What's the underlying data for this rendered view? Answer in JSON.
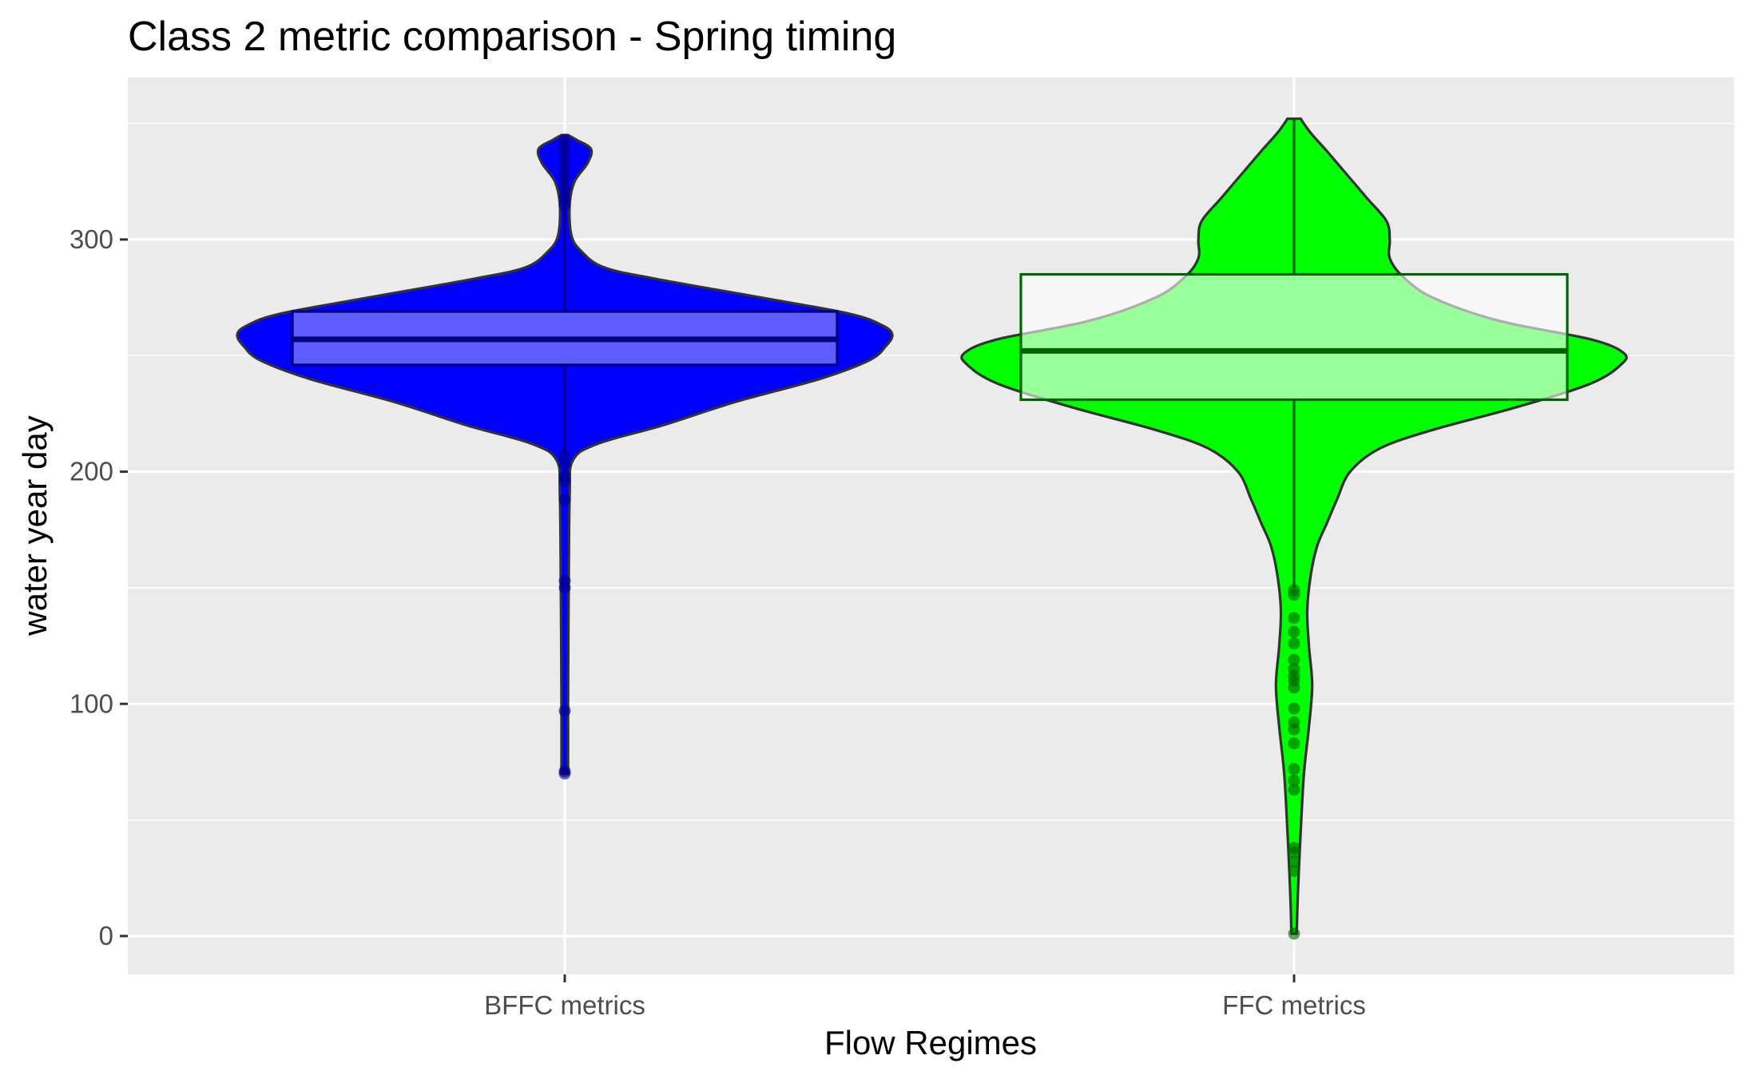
{
  "chart_data": {
    "type": "violin",
    "title": "Class 2 metric comparison - Spring timing",
    "xlabel": "Flow Regimes",
    "ylabel": "water year day",
    "ylim": [
      -16,
      366
    ],
    "y_ticks": [
      0,
      100,
      200,
      300
    ],
    "categories": [
      "BFFC metrics",
      "FFC metrics"
    ],
    "grid": true,
    "legend": "none",
    "series": [
      {
        "category": "BFFC metrics",
        "fill_color": "#0000ff",
        "box_fill": "#9999ff",
        "box_line": "#000080",
        "point_color": "#00008b",
        "box": {
          "q1": 246,
          "median": 257,
          "q3": 269,
          "whisker_low": 208,
          "whisker_high": 340
        },
        "density": [
          {
            "y": 70,
            "w": 0.01
          },
          {
            "y": 100,
            "w": 0.01
          },
          {
            "y": 150,
            "w": 0.012
          },
          {
            "y": 190,
            "w": 0.015
          },
          {
            "y": 205,
            "w": 0.025
          },
          {
            "y": 212,
            "w": 0.1
          },
          {
            "y": 220,
            "w": 0.3
          },
          {
            "y": 230,
            "w": 0.52
          },
          {
            "y": 240,
            "w": 0.78
          },
          {
            "y": 248,
            "w": 0.93
          },
          {
            "y": 254,
            "w": 0.98
          },
          {
            "y": 259,
            "w": 1.0
          },
          {
            "y": 263,
            "w": 0.97
          },
          {
            "y": 268,
            "w": 0.87
          },
          {
            "y": 275,
            "w": 0.6
          },
          {
            "y": 283,
            "w": 0.28
          },
          {
            "y": 288,
            "w": 0.12
          },
          {
            "y": 295,
            "w": 0.05
          },
          {
            "y": 302,
            "w": 0.02
          },
          {
            "y": 315,
            "w": 0.015
          },
          {
            "y": 325,
            "w": 0.03
          },
          {
            "y": 333,
            "w": 0.07
          },
          {
            "y": 339,
            "w": 0.08
          },
          {
            "y": 343,
            "w": 0.035
          },
          {
            "y": 345,
            "w": 0.01
          }
        ],
        "outliers": [
          70,
          71,
          97,
          150,
          153,
          188,
          196,
          198,
          203,
          207,
          315,
          318,
          322,
          326,
          330,
          334,
          338,
          341,
          343
        ]
      },
      {
        "category": "FFC metrics",
        "fill_color": "#00ff00",
        "box_fill": "#ffffff",
        "box_line": "#006400",
        "point_color": "#006400",
        "box": {
          "q1": 231,
          "median": 252,
          "q3": 285,
          "whisker_low": 150,
          "whisker_high": 352
        },
        "density": [
          {
            "y": 1,
            "w": 0.008
          },
          {
            "y": 20,
            "w": 0.012
          },
          {
            "y": 45,
            "w": 0.02
          },
          {
            "y": 70,
            "w": 0.03
          },
          {
            "y": 90,
            "w": 0.045
          },
          {
            "y": 108,
            "w": 0.055
          },
          {
            "y": 125,
            "w": 0.045
          },
          {
            "y": 140,
            "w": 0.04
          },
          {
            "y": 155,
            "w": 0.05
          },
          {
            "y": 168,
            "w": 0.07
          },
          {
            "y": 178,
            "w": 0.1
          },
          {
            "y": 188,
            "w": 0.13
          },
          {
            "y": 200,
            "w": 0.17
          },
          {
            "y": 210,
            "w": 0.26
          },
          {
            "y": 218,
            "w": 0.42
          },
          {
            "y": 228,
            "w": 0.68
          },
          {
            "y": 238,
            "w": 0.9
          },
          {
            "y": 246,
            "w": 0.99
          },
          {
            "y": 251,
            "w": 1.0
          },
          {
            "y": 257,
            "w": 0.9
          },
          {
            "y": 265,
            "w": 0.62
          },
          {
            "y": 275,
            "w": 0.42
          },
          {
            "y": 284,
            "w": 0.33
          },
          {
            "y": 292,
            "w": 0.29
          },
          {
            "y": 300,
            "w": 0.29
          },
          {
            "y": 308,
            "w": 0.28
          },
          {
            "y": 318,
            "w": 0.22
          },
          {
            "y": 328,
            "w": 0.16
          },
          {
            "y": 338,
            "w": 0.1
          },
          {
            "y": 346,
            "w": 0.05
          },
          {
            "y": 352,
            "w": 0.02
          }
        ],
        "outliers": [
          1,
          28,
          32,
          36,
          38,
          63,
          67,
          72,
          83,
          89,
          92,
          98,
          107,
          110,
          112,
          115,
          119,
          126,
          131,
          137,
          147,
          149
        ]
      }
    ]
  }
}
